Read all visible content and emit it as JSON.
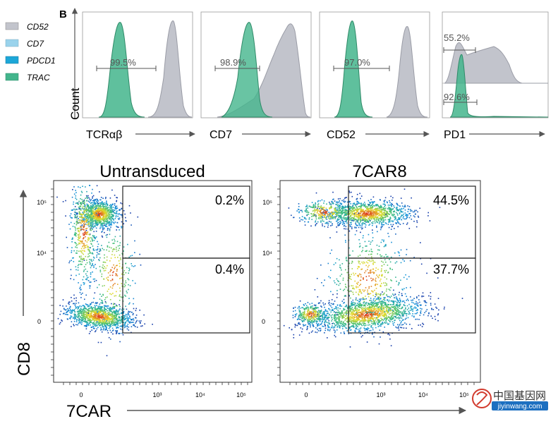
{
  "chart_data": [
    {
      "type": "histogram",
      "panel_label": "B",
      "legend": [
        "CD52",
        "CD7",
        "PDCD1",
        "TRAC"
      ],
      "legend_colors": [
        "#c2c4cc",
        "#9ad3ec",
        "#1ca7d8",
        "#43b58c"
      ],
      "ylabel": "Count",
      "panels": [
        {
          "xlabel": "TCRαβ",
          "gate_percent": "99.5%"
        },
        {
          "xlabel": "CD7",
          "gate_percent": "98.9%"
        },
        {
          "xlabel": "CD52",
          "gate_percent": "97.0%"
        },
        {
          "xlabel": "PD1",
          "gate_percents": [
            "55.2%",
            "92.6%"
          ]
        }
      ]
    },
    {
      "type": "scatter",
      "style": "flow cytometry density dot plot",
      "xlabel": "7CAR",
      "ylabel": "CD8",
      "x_tick_labels": [
        "0",
        "10³",
        "10⁴",
        "10⁵"
      ],
      "y_tick_labels": [
        "0",
        "10⁴",
        "10⁵"
      ],
      "plots": [
        {
          "title": "Untransduced",
          "gate_upper": "0.2%",
          "gate_lower": "0.4%"
        },
        {
          "title": "7CAR8",
          "gate_upper": "44.5%",
          "gate_lower": "37.7%"
        }
      ]
    }
  ],
  "watermark": {
    "text_cn": "中国基因网",
    "url": "jiyinwang.com"
  },
  "colors": {
    "accent_green": "#43b58c",
    "grey_fill": "#c2c4cc",
    "axis": "#555555"
  }
}
